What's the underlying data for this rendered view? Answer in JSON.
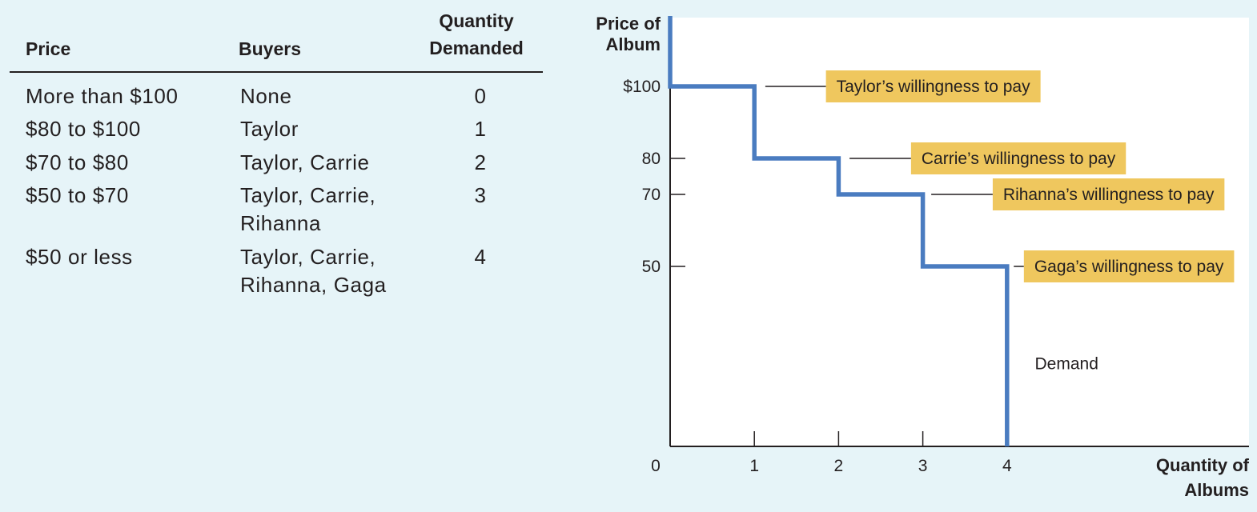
{
  "table": {
    "headers": {
      "price": "Price",
      "buyers": "Buyers",
      "quantity_line1": "Quantity",
      "quantity_line2": "Demanded"
    },
    "rows": [
      {
        "price": "More than $100",
        "buyers": [
          "None"
        ],
        "quantity": "0"
      },
      {
        "price": "$80 to $100",
        "buyers": [
          "Taylor"
        ],
        "quantity": "1"
      },
      {
        "price": "$70 to $80",
        "buyers": [
          "Taylor, Carrie"
        ],
        "quantity": "2"
      },
      {
        "price": "$50 to $70",
        "buyers": [
          "Taylor, Carrie,",
          "Rihanna"
        ],
        "quantity": "3"
      },
      {
        "price": "$50 or less",
        "buyers": [
          "Taylor, Carrie,",
          "Rihanna, Gaga"
        ],
        "quantity": "4"
      }
    ]
  },
  "chart_data": {
    "type": "line",
    "ylabel": [
      "Price of",
      "Album"
    ],
    "xlabel": [
      "Quantity of",
      "Albums"
    ],
    "xlim": [
      0,
      6.7
    ],
    "ylim": [
      0,
      125
    ],
    "x_ticks": [
      {
        "value": 0,
        "label": "0"
      },
      {
        "value": 1,
        "label": "1"
      },
      {
        "value": 2,
        "label": "2"
      },
      {
        "value": 3,
        "label": "3"
      },
      {
        "value": 4,
        "label": "4"
      }
    ],
    "y_ticks": [
      {
        "value": 100,
        "label": "$100"
      },
      {
        "value": 80,
        "label": "80"
      },
      {
        "value": 70,
        "label": "70"
      },
      {
        "value": 50,
        "label": "50"
      }
    ],
    "series": [
      {
        "name": "Demand",
        "color": "#4a7cc0",
        "points": [
          [
            0,
            125
          ],
          [
            0,
            100
          ],
          [
            1,
            100
          ],
          [
            1,
            80
          ],
          [
            2,
            80
          ],
          [
            2,
            70
          ],
          [
            3,
            70
          ],
          [
            3,
            50
          ],
          [
            4,
            50
          ],
          [
            4,
            0
          ]
        ]
      }
    ],
    "series_label": {
      "text": "Demand",
      "x": 4.33,
      "y": 23
    },
    "callouts": [
      {
        "text": "Taylor’s willingness to pay",
        "x_from": 1.13,
        "x_to": 1.85,
        "y": 100
      },
      {
        "text": "Carrie’s willingness to pay",
        "x_from": 2.13,
        "x_to": 2.86,
        "y": 80
      },
      {
        "text": "Rihanna’s willingness to pay",
        "x_from": 3.1,
        "x_to": 3.83,
        "y": 70
      },
      {
        "text": "Gaga’s willingness to pay",
        "x_from": 4.08,
        "x_to": 4.2,
        "y": 50
      }
    ],
    "callout_color": "#efc75e",
    "grid": false
  }
}
